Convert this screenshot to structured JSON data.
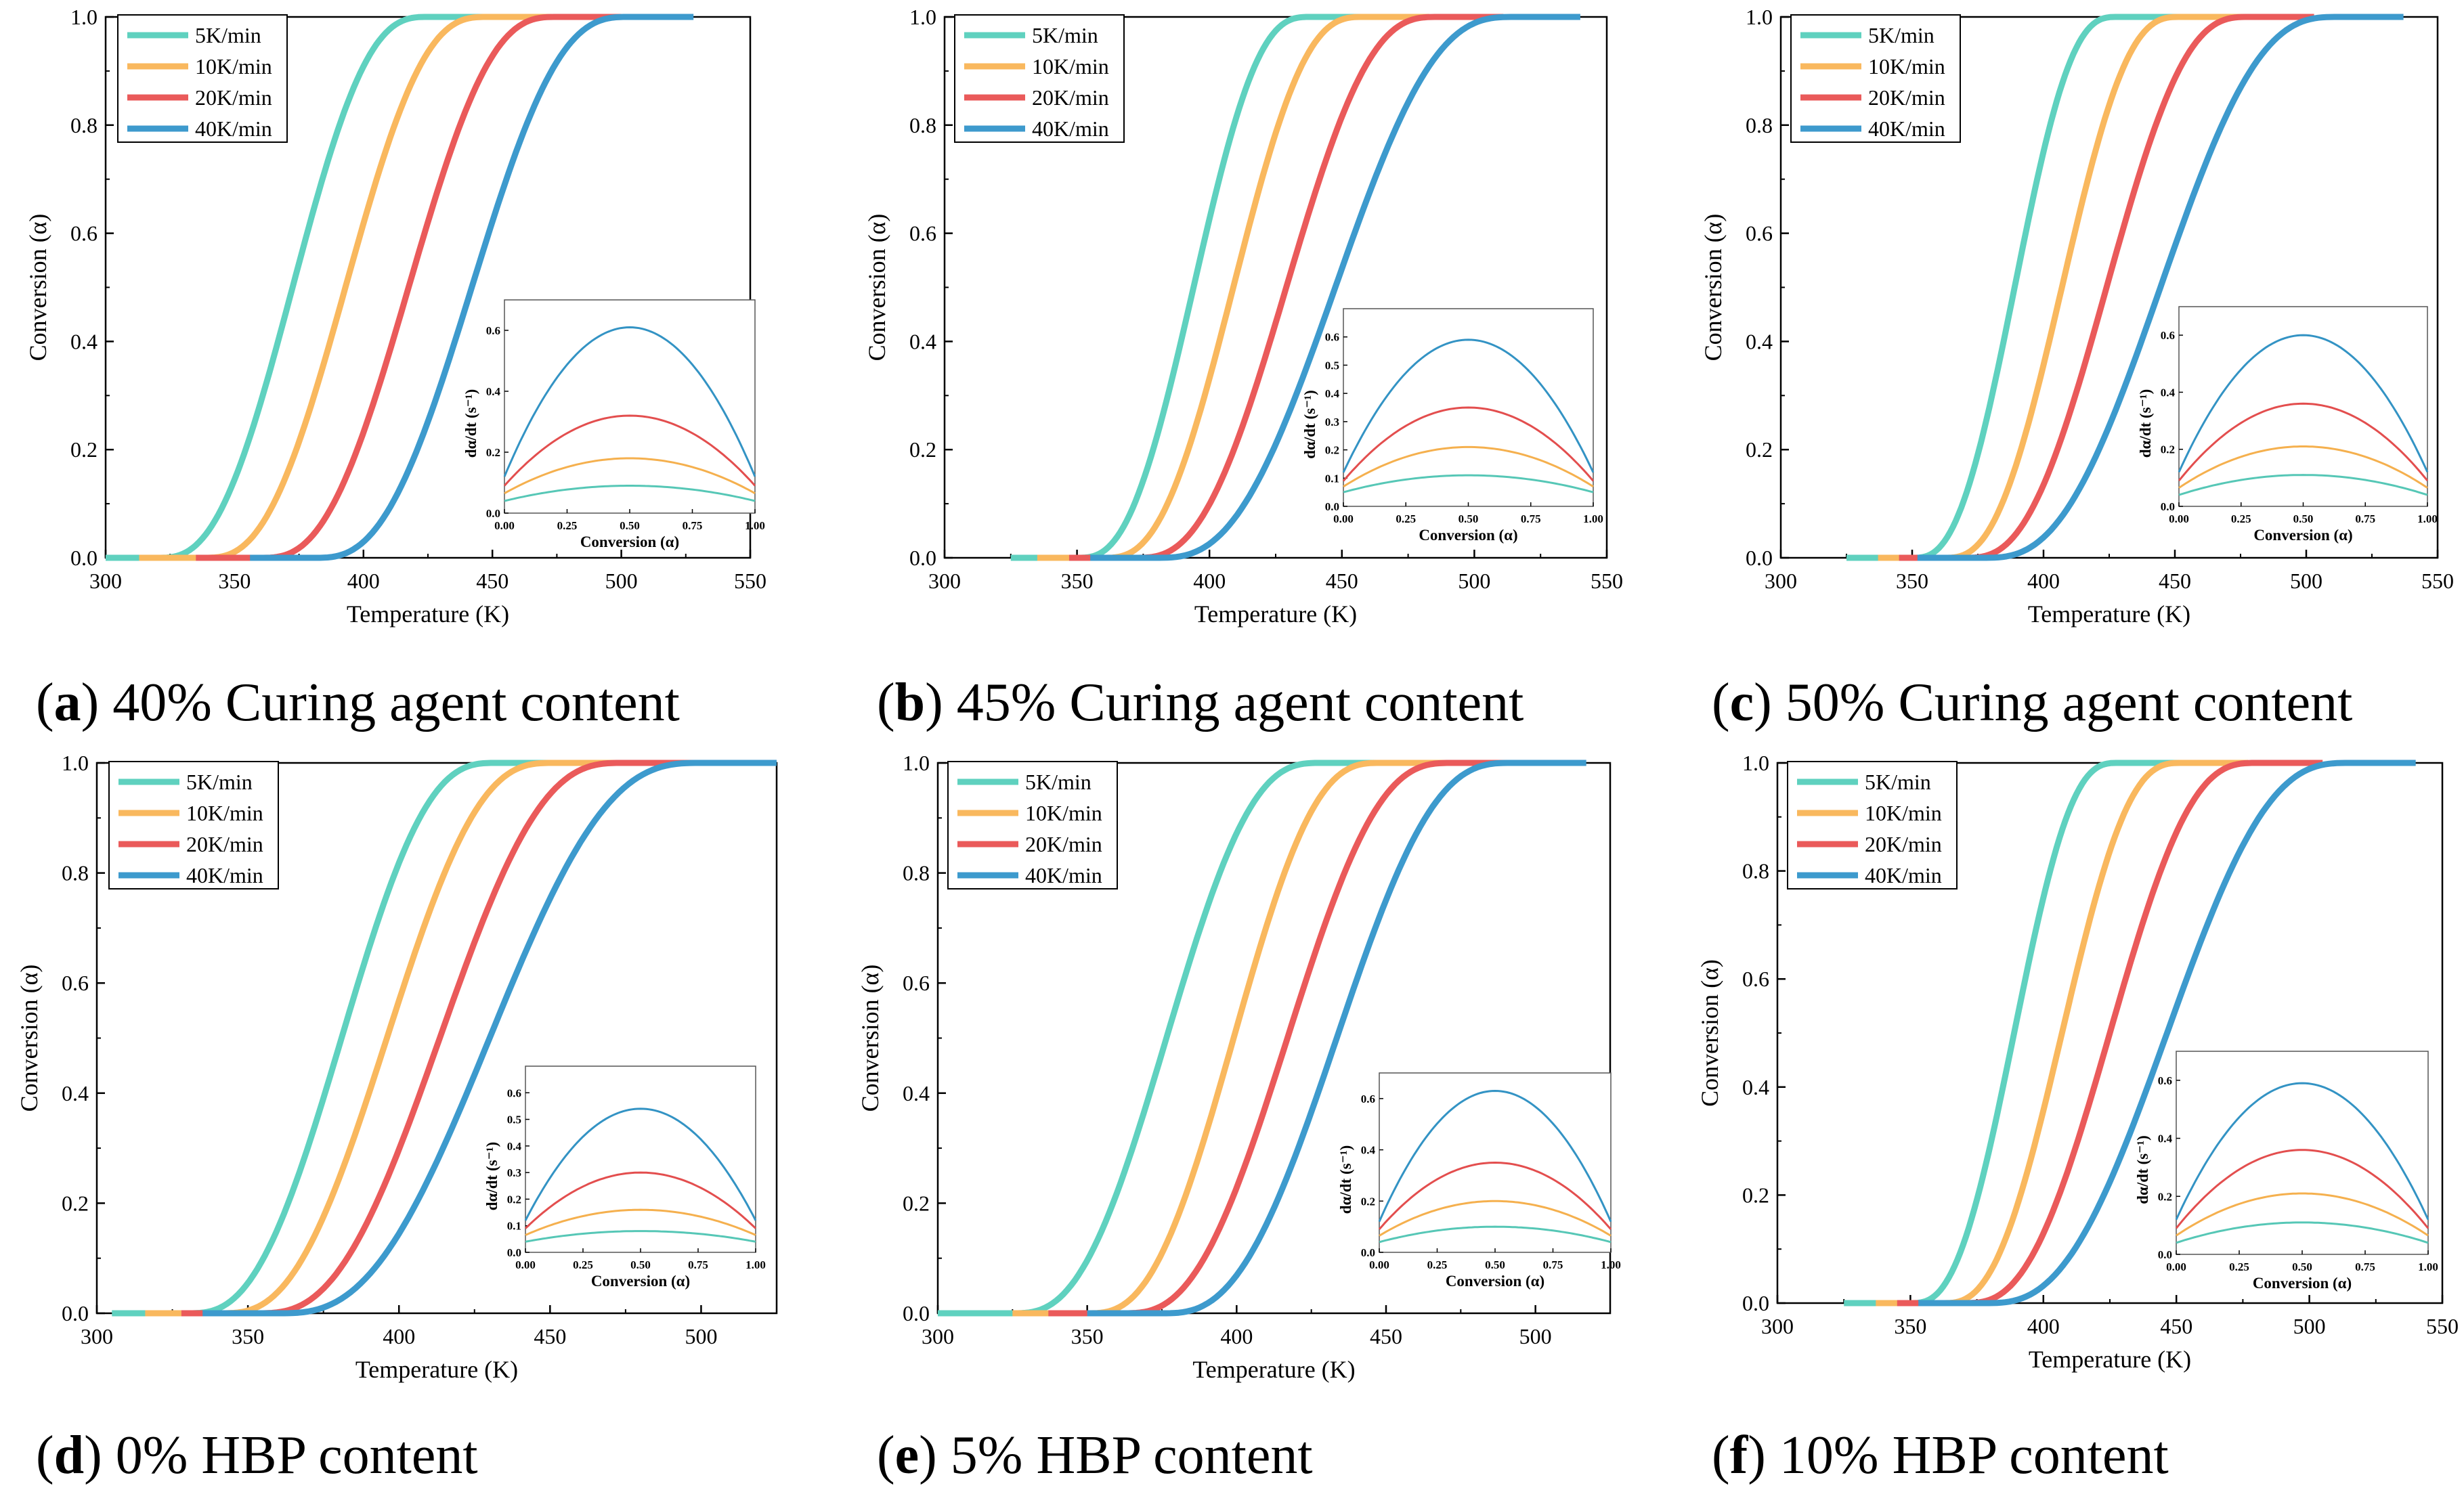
{
  "figure": {
    "legend_entries": [
      "5K/min",
      "10K/min",
      "20K/min",
      "40K/min"
    ],
    "series_colors": [
      "#5fd1bf",
      "#f9b85e",
      "#ea5a5a",
      "#3d9acd"
    ],
    "inset_colors": [
      "#56c7b6",
      "#f5b04e",
      "#e34e4e",
      "#3393c4"
    ]
  },
  "chart_data": [
    {
      "id": "a",
      "type": "line",
      "caption_letter": "a",
      "caption_text": "40% Curing agent content",
      "xlabel": "Temperature (K)",
      "ylabel": "Conversion (α)",
      "xlim": [
        300,
        550
      ],
      "ylim": [
        0,
        1
      ],
      "xticks": [
        300,
        350,
        400,
        450,
        500,
        550
      ],
      "yticks": [
        0.0,
        0.2,
        0.4,
        0.6,
        0.8,
        1.0
      ],
      "series": [
        {
          "name": "5K/min",
          "start": 320,
          "end": 425
        },
        {
          "name": "10K/min",
          "start": 338,
          "end": 448
        },
        {
          "name": "20K/min",
          "start": 360,
          "end": 475
        },
        {
          "name": "40K/min",
          "start": 381,
          "end": 503
        }
      ],
      "inset": {
        "type": "line",
        "xlabel": "Conversion (α)",
        "ylabel": "dα/dt (s⁻¹)",
        "xlim": [
          0,
          1
        ],
        "ylim": [
          0,
          0.7
        ],
        "xticks": [
          "0.00",
          "0.25",
          "0.50",
          "0.75",
          "1.00"
        ],
        "yticks": [
          "0.0",
          "0.2",
          "0.4",
          "0.6"
        ],
        "ends": [
          0.04,
          0.065,
          0.09,
          0.12
        ],
        "peaks": [
          0.09,
          0.18,
          0.32,
          0.61
        ]
      }
    },
    {
      "id": "b",
      "type": "line",
      "caption_letter": "b",
      "caption_text": "45% Curing agent content",
      "xlabel": "Temperature (K)",
      "ylabel": "Conversion (α)",
      "xlim": [
        300,
        550
      ],
      "ylim": [
        0,
        1
      ],
      "xticks": [
        300,
        350,
        400,
        450,
        500,
        550
      ],
      "yticks": [
        0.0,
        0.2,
        0.4,
        0.6,
        0.8,
        1.0
      ],
      "series": [
        {
          "name": "5K/min",
          "start": 350,
          "end": 438
        },
        {
          "name": "10K/min",
          "start": 360,
          "end": 458
        },
        {
          "name": "20K/min",
          "start": 372,
          "end": 486
        },
        {
          "name": "40K/min",
          "start": 380,
          "end": 515
        }
      ],
      "inset": {
        "type": "line",
        "xlabel": "Conversion (α)",
        "ylabel": "dα/dt (s⁻¹)",
        "xlim": [
          0,
          1
        ],
        "ylim": [
          0,
          0.7
        ],
        "xticks": [
          "0.00",
          "0.25",
          "0.50",
          "0.75",
          "1.00"
        ],
        "yticks": [
          "0.0",
          "0.1",
          "0.2",
          "0.3",
          "0.4",
          "0.5",
          "0.6"
        ],
        "ends": [
          0.05,
          0.07,
          0.09,
          0.12
        ],
        "peaks": [
          0.11,
          0.21,
          0.35,
          0.59
        ]
      }
    },
    {
      "id": "c",
      "type": "line",
      "caption_letter": "c",
      "caption_text": "50% Curing agent content",
      "xlabel": "Temperature (K)",
      "ylabel": "Conversion (α)",
      "xlim": [
        300,
        550
      ],
      "ylim": [
        0,
        1
      ],
      "xticks": [
        300,
        350,
        400,
        450,
        500,
        550
      ],
      "yticks": [
        0.0,
        0.2,
        0.4,
        0.6,
        0.8,
        1.0
      ],
      "series": [
        {
          "name": "5K/min",
          "start": 350,
          "end": 428
        },
        {
          "name": "10K/min",
          "start": 362,
          "end": 452
        },
        {
          "name": "20K/min",
          "start": 370,
          "end": 478
        },
        {
          "name": "40K/min",
          "start": 377,
          "end": 512
        }
      ],
      "inset": {
        "type": "line",
        "xlabel": "Conversion (α)",
        "ylabel": "dα/dt (s⁻¹)",
        "xlim": [
          0,
          1
        ],
        "ylim": [
          0,
          0.7
        ],
        "xticks": [
          "0.00",
          "0.25",
          "0.50",
          "0.75",
          "1.00"
        ],
        "yticks": [
          "0.0",
          "0.2",
          "0.4",
          "0.6"
        ],
        "ends": [
          0.04,
          0.065,
          0.09,
          0.12
        ],
        "peaks": [
          0.11,
          0.21,
          0.36,
          0.6
        ]
      }
    },
    {
      "id": "d",
      "type": "line",
      "caption_letter": "d",
      "caption_text": "0% HBP content",
      "xlabel": "Temperature (K)",
      "ylabel": "Conversion (α)",
      "xlim": [
        300,
        525
      ],
      "ylim": [
        0,
        1
      ],
      "xticks": [
        300,
        350,
        400,
        450,
        500
      ],
      "yticks": [
        0.0,
        0.2,
        0.4,
        0.6,
        0.8,
        1.0
      ],
      "series": [
        {
          "name": "5K/min",
          "start": 330,
          "end": 432
        },
        {
          "name": "10K/min",
          "start": 341,
          "end": 451
        },
        {
          "name": "20K/min",
          "start": 353,
          "end": 474
        },
        {
          "name": "40K/min",
          "start": 360,
          "end": 500
        }
      ],
      "inset": {
        "type": "line",
        "xlabel": "Conversion (α)",
        "ylabel": "dα/dt (s⁻¹)",
        "xlim": [
          0,
          1
        ],
        "ylim": [
          0,
          0.7
        ],
        "xticks": [
          "0.00",
          "0.25",
          "0.50",
          "0.75",
          "1.00"
        ],
        "yticks": [
          "0.0",
          "0.1",
          "0.2",
          "0.3",
          "0.4",
          "0.5",
          "0.6"
        ],
        "ends": [
          0.04,
          0.065,
          0.09,
          0.12
        ],
        "peaks": [
          0.08,
          0.16,
          0.3,
          0.54
        ]
      }
    },
    {
      "id": "e",
      "type": "line",
      "caption_letter": "e",
      "caption_text": "5% HBP content",
      "xlabel": "Temperature (K)",
      "ylabel": "Conversion (α)",
      "xlim": [
        300,
        525
      ],
      "ylim": [
        0,
        1
      ],
      "xticks": [
        300,
        350,
        400,
        450,
        500
      ],
      "yticks": [
        0.0,
        0.2,
        0.4,
        0.6,
        0.8,
        1.0
      ],
      "series": [
        {
          "name": "5K/min",
          "start": 325,
          "end": 428
        },
        {
          "name": "10K/min",
          "start": 350,
          "end": 448
        },
        {
          "name": "20K/min",
          "start": 362,
          "end": 472
        },
        {
          "name": "40K/min",
          "start": 375,
          "end": 492
        }
      ],
      "inset": {
        "type": "line",
        "xlabel": "Conversion (α)",
        "ylabel": "dα/dt (s⁻¹)",
        "xlim": [
          0,
          1
        ],
        "ylim": [
          0,
          0.7
        ],
        "xticks": [
          "0.00",
          "0.25",
          "0.50",
          "0.75",
          "1.00"
        ],
        "yticks": [
          "0.0",
          "0.2",
          "0.4",
          "0.6"
        ],
        "ends": [
          0.04,
          0.065,
          0.09,
          0.12
        ],
        "peaks": [
          0.1,
          0.2,
          0.35,
          0.63
        ]
      }
    },
    {
      "id": "f",
      "type": "line",
      "caption_letter": "f",
      "caption_text": "10% HBP content",
      "xlabel": "Temperature (K)",
      "ylabel": "Conversion (α)",
      "xlim": [
        300,
        550
      ],
      "ylim": [
        0,
        1
      ],
      "xticks": [
        300,
        350,
        400,
        450,
        500,
        550
      ],
      "yticks": [
        0.0,
        0.2,
        0.4,
        0.6,
        0.8,
        1.0
      ],
      "series": [
        {
          "name": "5K/min",
          "start": 350,
          "end": 428
        },
        {
          "name": "10K/min",
          "start": 362,
          "end": 452
        },
        {
          "name": "20K/min",
          "start": 370,
          "end": 480
        },
        {
          "name": "40K/min",
          "start": 378,
          "end": 515
        }
      ],
      "inset": {
        "type": "line",
        "xlabel": "Conversion (α)",
        "ylabel": "dα/dt (s⁻¹)",
        "xlim": [
          0,
          1
        ],
        "ylim": [
          0,
          0.7
        ],
        "xticks": [
          "0.00",
          "0.25",
          "0.50",
          "0.75",
          "1.00"
        ],
        "yticks": [
          "0.0",
          "0.2",
          "0.4",
          "0.6"
        ],
        "ends": [
          0.04,
          0.065,
          0.09,
          0.12
        ],
        "peaks": [
          0.11,
          0.21,
          0.36,
          0.59
        ]
      }
    }
  ]
}
